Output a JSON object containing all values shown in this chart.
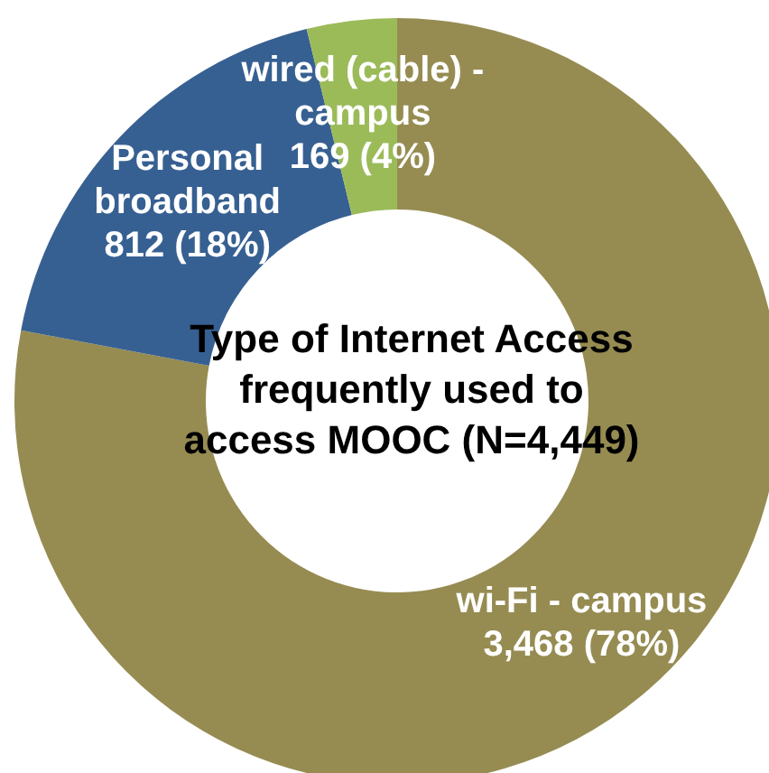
{
  "chart_data": {
    "type": "donut",
    "title": "Type of Internet Access frequently used to access MOOC (N=4,449)",
    "categories": [
      "wi-Fi - campus",
      "Personal broadband",
      "wired (cable) - campus"
    ],
    "values": [
      3468,
      812,
      169
    ],
    "value_labels": [
      "3,468 (78%)",
      "812 (18%)",
      "169 (4%)"
    ],
    "colors": [
      "#968c52",
      "#376092",
      "#9bbb59"
    ],
    "legend": false
  }
}
